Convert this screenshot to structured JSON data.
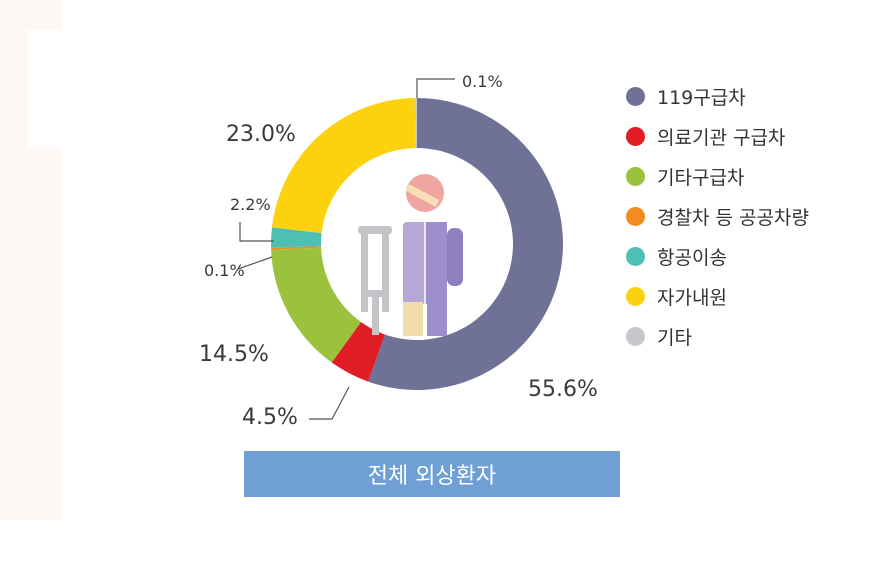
{
  "chart_data": {
    "type": "pie",
    "title": "",
    "center_label": "",
    "slices": [
      {
        "label": "119구급차",
        "value": 55.6,
        "value_label": "55.6%",
        "color": "#6f7196"
      },
      {
        "label": "의료기관 구급차",
        "value": 4.5,
        "value_label": "4.5%",
        "color": "#e01d24"
      },
      {
        "label": "기타구급차",
        "value": 14.5,
        "value_label": "14.5%",
        "color": "#9ac23c"
      },
      {
        "label": "경찰차 등 공공차량",
        "value": 0.1,
        "value_label": "0.1%",
        "color": "#f28c21"
      },
      {
        "label": "항공이송",
        "value": 2.2,
        "value_label": "2.2%",
        "color": "#4ebfb5"
      },
      {
        "label": "자가내원",
        "value": 23.0,
        "value_label": "23.0%",
        "color": "#fcd20f"
      },
      {
        "label": "기타",
        "value": 0.1,
        "value_label": "0.1%",
        "color": "#c8c8cc"
      }
    ],
    "legend_position": "right"
  },
  "caption": "전체 외상환자",
  "icon": "injured-patient-with-crutch-icon"
}
